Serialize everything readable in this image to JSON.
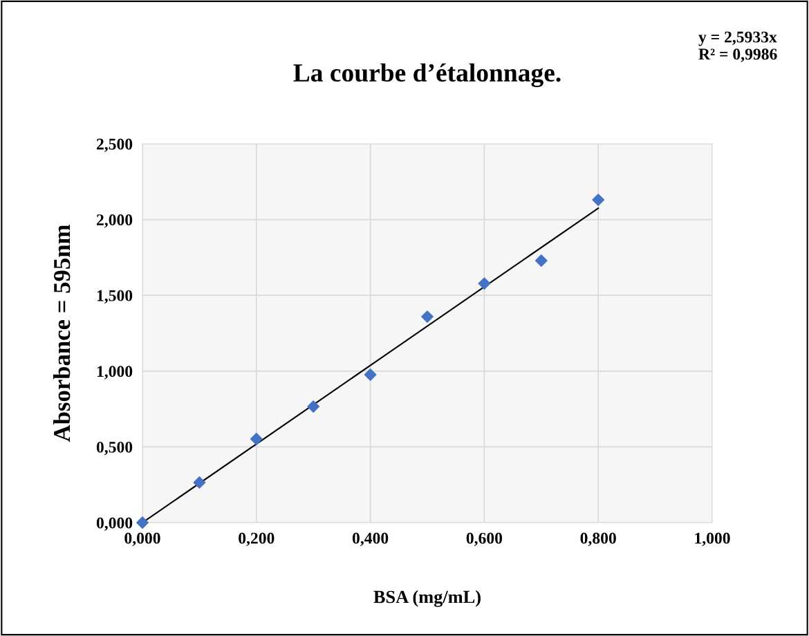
{
  "chart_data": {
    "type": "scatter",
    "title": "La courbe d’étalonnage.",
    "xlabel": "BSA (mg/mL)",
    "ylabel": "Absorbance = 595nm",
    "x": [
      0,
      0.1,
      0.2,
      0.3,
      0.4,
      0.5,
      0.6,
      0.7,
      0.8
    ],
    "series": [
      {
        "color": "#4472c4",
        "marker": "diamond",
        "values": [
          0,
          0.265,
          0.552,
          0.766,
          0.976,
          1.359,
          1.578,
          1.729,
          2.13
        ]
      },
      {
        "type": "line",
        "color": "#000000",
        "marker": "none",
        "line_style": "solid",
        "x": [
          0,
          0.8
        ],
        "values": [
          0,
          2.075
        ]
      }
    ],
    "xlim": [
      0,
      1
    ],
    "ylim": [
      0,
      2.5
    ],
    "xticks": [
      {
        "value": 0,
        "label": "0,000"
      },
      {
        "value": 0.2,
        "label": "0,200"
      },
      {
        "value": 0.4,
        "label": "0,400"
      },
      {
        "value": 0.6,
        "label": "0,600"
      },
      {
        "value": 0.8,
        "label": "0,800"
      },
      {
        "value": 1,
        "label": "1,000"
      }
    ],
    "yticks": [
      {
        "value": 0,
        "label": "0,000"
      },
      {
        "value": 0.5,
        "label": "0,500"
      },
      {
        "value": 1,
        "label": "1,000"
      },
      {
        "value": 1.5,
        "label": "1,500"
      },
      {
        "value": 2,
        "label": "2,000"
      },
      {
        "value": 2.5,
        "label": "2,500"
      }
    ],
    "grid": true,
    "annotations": [
      "y = 2,5933x\nR² = 0,9986"
    ]
  }
}
